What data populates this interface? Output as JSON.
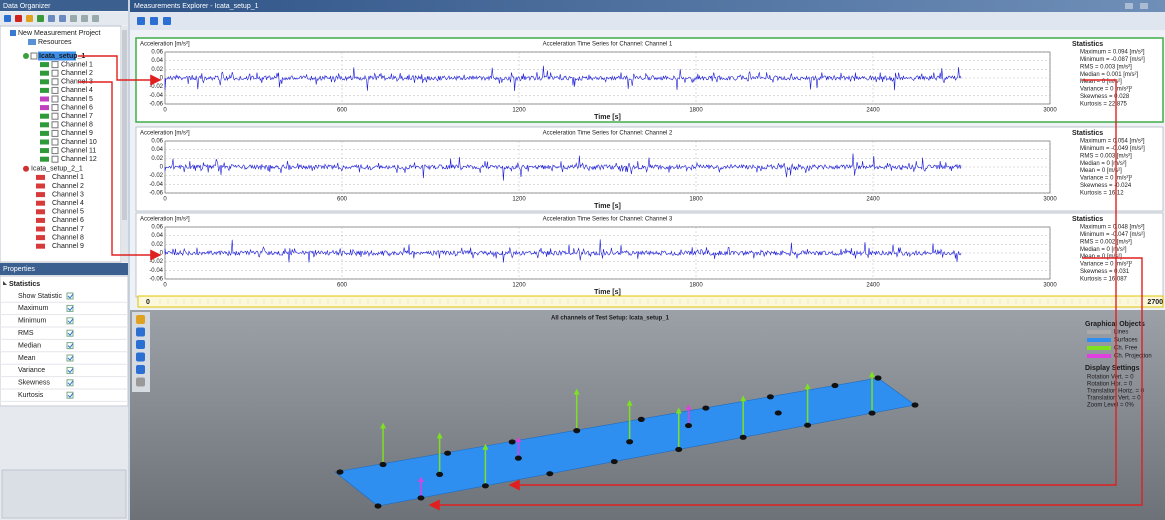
{
  "data_organizer": {
    "title": "Data Organizer",
    "project": "New Measurement Project",
    "resources": "Resources",
    "setups": [
      {
        "name": "Icata_setup_1",
        "channels": [
          "Channel 1",
          "Channel 2",
          "Channel 3",
          "Channel 4",
          "Channel 5",
          "Channel 6",
          "Channel 7",
          "Channel 8",
          "Channel 9",
          "Channel 10",
          "Channel 11",
          "Channel 12"
        ]
      },
      {
        "name": "Icata_setup_2_1",
        "channels": [
          "Channel 1",
          "Channel 2",
          "Channel 3",
          "Channel 4",
          "Channel 5",
          "Channel 6",
          "Channel 7",
          "Channel 8",
          "Channel 9"
        ]
      }
    ]
  },
  "properties": {
    "title": "Properties",
    "group": "Statistics",
    "items": [
      "Show Statistic",
      "Maximum",
      "Minimum",
      "RMS",
      "Median",
      "Mean",
      "Variance",
      "Skewness",
      "Kurtosis"
    ]
  },
  "explorer": {
    "title": "Measurements Explorer - Icata_setup_1",
    "plots": [
      {
        "y_label": "Acceleration [m/s²]",
        "title": "Acceleration Time Series for Channel: Channel 1",
        "x_label": "Time [s]",
        "yticks": [
          "0.06",
          "0.04",
          "0.02",
          "0",
          "-0.02",
          "-0.04",
          "-0.06"
        ],
        "xticks": [
          "0",
          "600",
          "1200",
          "1800",
          "2400",
          "3000"
        ],
        "stats_title": "Statistics",
        "stats": [
          "Maximum = 0.094 [m/s²]",
          "Minimum = -0.087 [m/s²]",
          "RMS = 0.003 [m/s²]",
          "Median = 0.001 [m/s²]",
          "Mean = 0 [m/s²]",
          "Variance = 0 [m/s²]²",
          "Skewness = 0.028",
          "Kurtosis = 22.875"
        ]
      },
      {
        "y_label": "Acceleration [m/s²]",
        "title": "Acceleration Time Series for Channel: Channel 2",
        "x_label": "Time [s]",
        "yticks": [
          "0.06",
          "0.04",
          "0.02",
          "0",
          "-0.02",
          "-0.04",
          "-0.06"
        ],
        "xticks": [
          "0",
          "600",
          "1200",
          "1800",
          "2400",
          "3000"
        ],
        "stats_title": "Statistics",
        "stats": [
          "Maximum = 0.054 [m/s²]",
          "Minimum = -0.049 [m/s²]",
          "RMS = 0.003 [m/s²]",
          "Median = 0 [m/s²]",
          "Mean = 0 [m/s²]",
          "Variance = 0 [m/s²]²",
          "Skewness = -0.024",
          "Kurtosis = 16.12"
        ]
      },
      {
        "y_label": "Acceleration [m/s²]",
        "title": "Acceleration Time Series for Channel: Channel 3",
        "x_label": "Time [s]",
        "yticks": [
          "0.06",
          "0.04",
          "0.02",
          "0",
          "-0.02",
          "-0.04",
          "-0.06"
        ],
        "xticks": [
          "0",
          "600",
          "1200",
          "1800",
          "2400",
          "3000"
        ],
        "stats_title": "Statistics",
        "stats": [
          "Maximum = 0.048 [m/s²]",
          "Minimum = -0.047 [m/s²]",
          "RMS = 0.002 [m/s²]",
          "Median = 0 [m/s²]",
          "Mean = 0 [m/s²]",
          "Variance = 0 [m/s²]²",
          "Skewness = 0.031",
          "Kurtosis = 16.087"
        ]
      }
    ],
    "timeline": {
      "start": "0",
      "end": "2700"
    },
    "view3d": {
      "title": "All channels of Test Setup: Icata_setup_1",
      "graphical_objects": {
        "title": "Graphical Objects",
        "items": [
          "Lines",
          "Surfaces",
          "Ch. Free",
          "Ch. Projection"
        ]
      },
      "display_settings": {
        "title": "Display Settings",
        "items": [
          "Rotation Vert. = 0",
          "Rotation Hor. = 0",
          "Translation Horiz. = 0",
          "Translation Vert. = 0",
          "Zoom Level = 0%"
        ]
      }
    }
  }
}
